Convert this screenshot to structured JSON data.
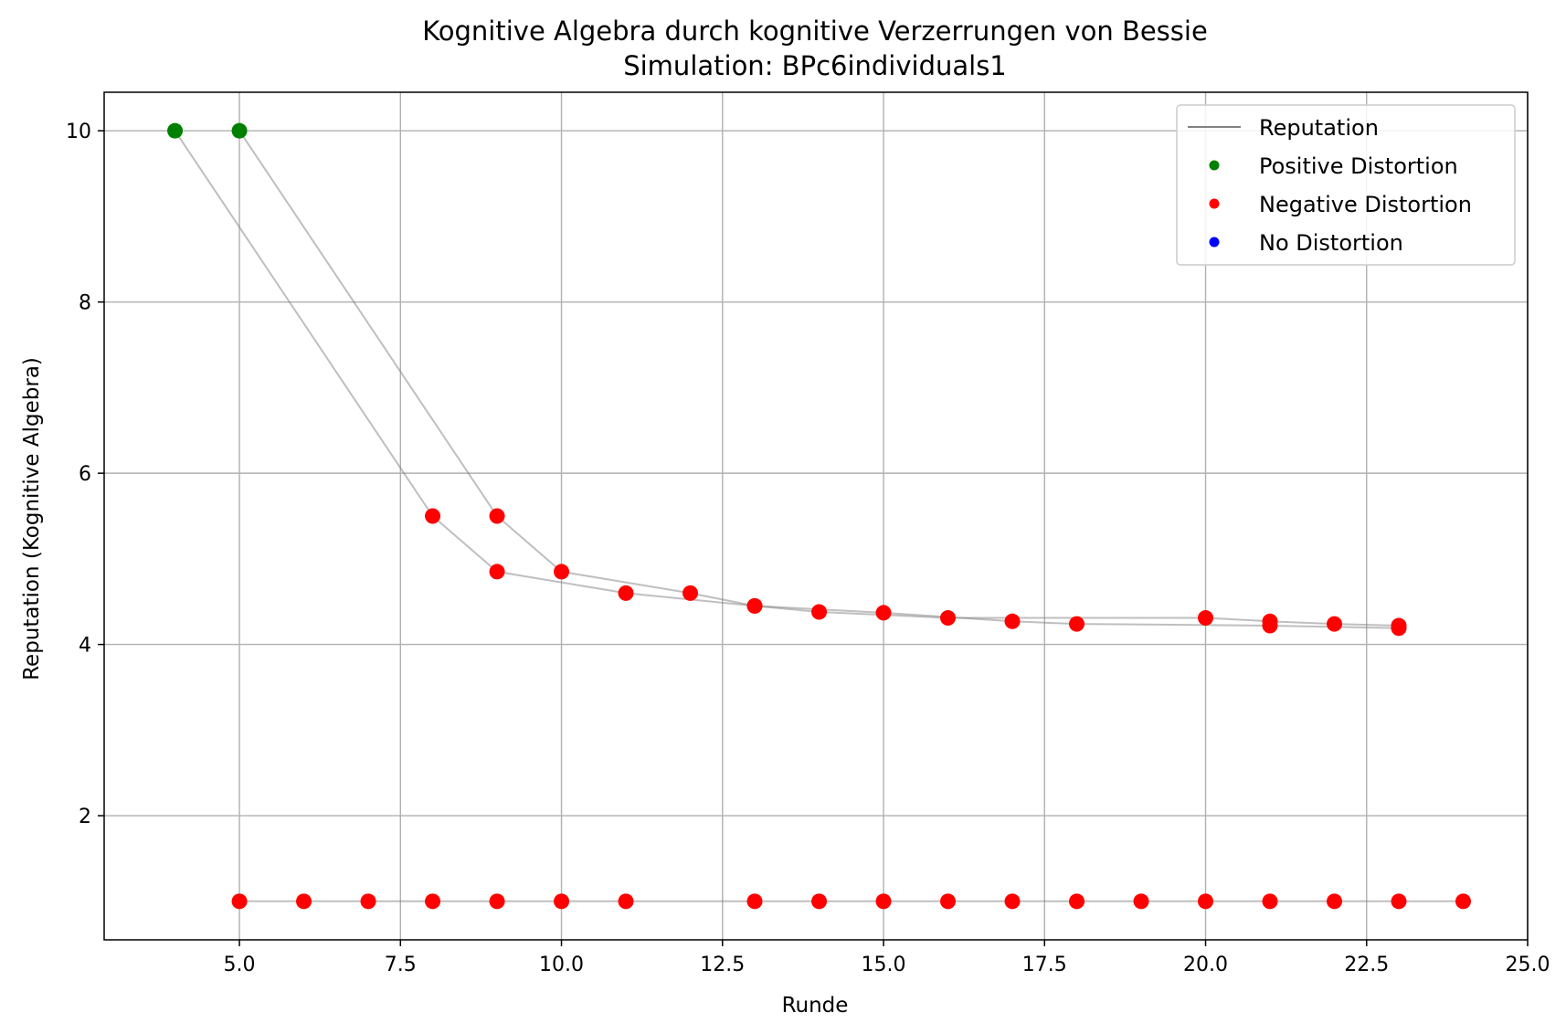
{
  "chart_data": {
    "type": "scatter",
    "title": "Kognitive Algebra durch kognitive Verzerrungen von Bessie",
    "subtitle": "Simulation: BPc6individuals1",
    "xlabel": "Runde",
    "ylabel": "Reputation (Kognitive Algebra)",
    "xlim": [
      2.9,
      25.0
    ],
    "ylim": [
      0.55,
      10.45
    ],
    "xticks": [
      5.0,
      7.5,
      10.0,
      12.5,
      15.0,
      17.5,
      20.0,
      22.5,
      25.0
    ],
    "xtick_labels": [
      "5.0",
      "7.5",
      "10.0",
      "12.5",
      "15.0",
      "17.5",
      "20.0",
      "22.5",
      "25.0"
    ],
    "yticks": [
      2,
      4,
      6,
      8,
      10
    ],
    "ytick_labels": [
      "2",
      "4",
      "6",
      "8",
      "10"
    ],
    "grid": true,
    "legend_position": "top-right",
    "legend": [
      {
        "label": "Reputation",
        "kind": "line",
        "color": "#808080"
      },
      {
        "label": "Positive Distortion",
        "kind": "marker",
        "color": "#008000"
      },
      {
        "label": "Negative Distortion",
        "kind": "marker",
        "color": "#ff0000"
      },
      {
        "label": "No Distortion",
        "kind": "marker",
        "color": "#0000ff"
      }
    ],
    "line_color": "#808080",
    "colors": {
      "positive": "#008000",
      "negative": "#ff0000",
      "none": "#0000ff"
    },
    "series": [
      {
        "points": [
          [
            4,
            10.0,
            "positive"
          ],
          [
            8,
            5.5,
            "negative"
          ],
          [
            9,
            4.85,
            "negative"
          ],
          [
            11,
            4.6,
            "negative"
          ],
          [
            13,
            4.45,
            "negative"
          ],
          [
            15,
            4.37,
            "negative"
          ],
          [
            17,
            4.27,
            "negative"
          ],
          [
            18,
            4.24,
            "negative"
          ],
          [
            21,
            4.22,
            "negative"
          ],
          [
            23,
            4.19,
            "negative"
          ]
        ]
      },
      {
        "points": [
          [
            5,
            10.0,
            "positive"
          ],
          [
            9,
            5.5,
            "negative"
          ],
          [
            10,
            4.85,
            "negative"
          ],
          [
            12,
            4.6,
            "negative"
          ],
          [
            13,
            4.45,
            "negative"
          ],
          [
            14,
            4.38,
            "negative"
          ],
          [
            16,
            4.31,
            "negative"
          ],
          [
            20,
            4.31,
            "negative"
          ],
          [
            21,
            4.27,
            "negative"
          ],
          [
            22,
            4.24,
            "negative"
          ],
          [
            23,
            4.22,
            "negative"
          ]
        ]
      },
      {
        "points": [
          [
            5,
            1.0,
            "negative"
          ],
          [
            6,
            1.0,
            "negative"
          ],
          [
            7,
            1.0,
            "negative"
          ],
          [
            8,
            1.0,
            "negative"
          ],
          [
            9,
            1.0,
            "negative"
          ],
          [
            10,
            1.0,
            "negative"
          ],
          [
            11,
            1.0,
            "negative"
          ],
          [
            13,
            1.0,
            "negative"
          ],
          [
            14,
            1.0,
            "negative"
          ],
          [
            15,
            1.0,
            "negative"
          ],
          [
            16,
            1.0,
            "negative"
          ],
          [
            17,
            1.0,
            "negative"
          ],
          [
            18,
            1.0,
            "negative"
          ],
          [
            19,
            1.0,
            "negative"
          ],
          [
            20,
            1.0,
            "negative"
          ],
          [
            21,
            1.0,
            "negative"
          ],
          [
            22,
            1.0,
            "negative"
          ],
          [
            23,
            1.0,
            "negative"
          ],
          [
            24,
            1.0,
            "negative"
          ]
        ]
      }
    ]
  }
}
